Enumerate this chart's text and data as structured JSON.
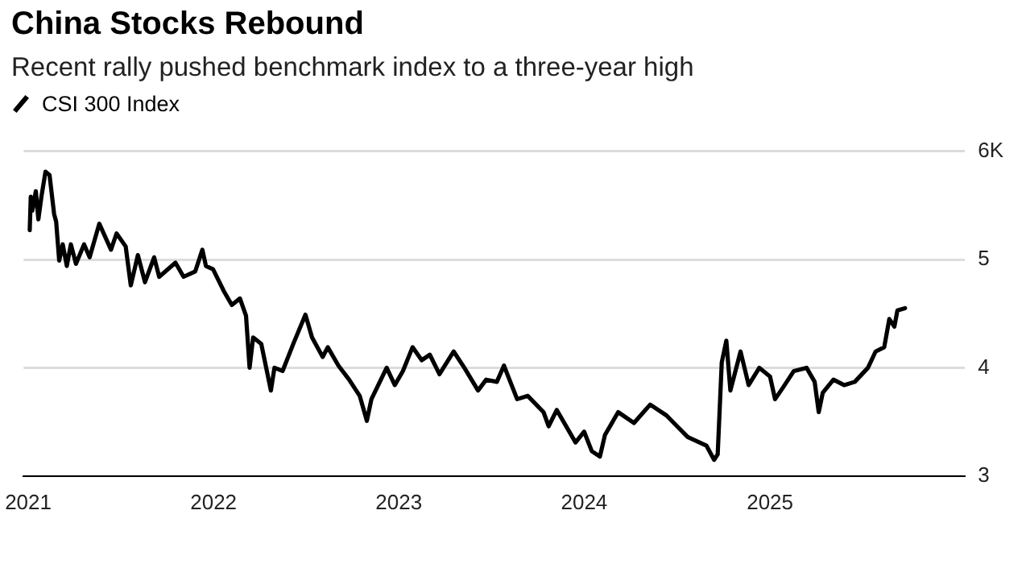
{
  "chart_data": {
    "type": "line",
    "title": "China Stocks Rebound",
    "subtitle": "Recent rally pushed benchmark index to a three-year high",
    "x": [
      "2021-01-04",
      "2021-01-06",
      "2021-01-09",
      "2021-01-16",
      "2021-01-21",
      "2021-01-27",
      "2021-02-04",
      "2021-02-12",
      "2021-02-21",
      "2021-02-25",
      "2021-03-03",
      "2021-03-10",
      "2021-03-18",
      "2021-03-26",
      "2021-04-05",
      "2021-04-21",
      "2021-05-02",
      "2021-05-21",
      "2021-06-13",
      "2021-06-24",
      "2021-07-12",
      "2021-07-22",
      "2021-08-05",
      "2021-08-19",
      "2021-09-06",
      "2021-09-16",
      "2021-10-18",
      "2021-11-03",
      "2021-11-26",
      "2021-12-10",
      "2021-12-17",
      "2021-12-31",
      "2022-01-21",
      "2022-02-06",
      "2022-02-22",
      "2022-03-06",
      "2022-03-13",
      "2022-03-20",
      "2022-04-05",
      "2022-04-24",
      "2022-05-01",
      "2022-05-17",
      "2022-06-07",
      "2022-07-01",
      "2022-07-14",
      "2022-08-04",
      "2022-08-14",
      "2022-09-04",
      "2022-09-25",
      "2022-10-16",
      "2022-10-30",
      "2022-11-08",
      "2022-12-08",
      "2022-12-24",
      "2023-01-09",
      "2023-01-28",
      "2023-02-15",
      "2023-03-03",
      "2023-03-22",
      "2023-04-19",
      "2023-05-10",
      "2023-06-06",
      "2023-06-22",
      "2023-07-13",
      "2023-07-27",
      "2023-08-22",
      "2023-09-12",
      "2023-10-13",
      "2023-10-23",
      "2023-11-08",
      "2023-12-15",
      "2024-01-01",
      "2024-01-16",
      "2024-02-01",
      "2024-02-11",
      "2024-03-08",
      "2024-04-08",
      "2024-05-10",
      "2024-06-11",
      "2024-07-02",
      "2024-07-23",
      "2024-08-29",
      "2024-09-13",
      "2024-09-20",
      "2024-09-28",
      "2024-10-07",
      "2024-10-15",
      "2024-11-04",
      "2024-11-20",
      "2024-12-11",
      "2025-01-01",
      "2025-01-11",
      "2025-01-27",
      "2025-02-17",
      "2025-03-14",
      "2025-03-30",
      "2025-04-07",
      "2025-04-15",
      "2025-05-06",
      "2025-05-27",
      "2025-06-17",
      "2025-07-13",
      "2025-07-28",
      "2025-08-14",
      "2025-08-24",
      "2025-09-03",
      "2025-09-09",
      "2025-09-24"
    ],
    "series": [
      {
        "name": "CSI 300 Index",
        "color": "#000000",
        "values": [
          5.27,
          5.58,
          5.45,
          5.63,
          5.37,
          5.58,
          5.81,
          5.78,
          5.42,
          5.35,
          4.99,
          5.14,
          4.94,
          5.14,
          4.96,
          5.14,
          5.02,
          5.33,
          5.09,
          5.24,
          5.12,
          4.76,
          5.04,
          4.79,
          5.02,
          4.84,
          4.97,
          4.84,
          4.89,
          5.09,
          4.94,
          4.91,
          4.71,
          4.58,
          4.64,
          4.48,
          4.0,
          4.28,
          4.22,
          3.79,
          4.0,
          3.97,
          4.22,
          4.49,
          4.28,
          4.1,
          4.19,
          4.02,
          3.89,
          3.74,
          3.51,
          3.71,
          4.0,
          3.84,
          3.97,
          4.19,
          4.07,
          4.12,
          3.94,
          4.15,
          4.0,
          3.79,
          3.89,
          3.87,
          4.02,
          3.71,
          3.74,
          3.59,
          3.46,
          3.61,
          3.31,
          3.41,
          3.23,
          3.18,
          3.38,
          3.59,
          3.49,
          3.66,
          3.56,
          3.46,
          3.36,
          3.28,
          3.15,
          3.2,
          4.05,
          4.25,
          3.79,
          4.15,
          3.84,
          4.0,
          3.92,
          3.71,
          3.82,
          3.97,
          4.0,
          3.87,
          3.59,
          3.77,
          3.89,
          3.84,
          3.87,
          4.0,
          4.15,
          4.19,
          4.45,
          4.38,
          4.53,
          4.55
        ]
      }
    ],
    "xlim": [
      "2020-12-23",
      "2026-01-20"
    ],
    "xticks": [
      "2021",
      "2022",
      "2023",
      "2024",
      "2025"
    ],
    "ylim": [
      3,
      6
    ],
    "yticks": [
      3,
      4,
      5,
      {
        "value": 6,
        "label": "6K"
      }
    ],
    "grid": "y",
    "legend": "top left",
    "marker": "none",
    "line_style": "solid"
  }
}
